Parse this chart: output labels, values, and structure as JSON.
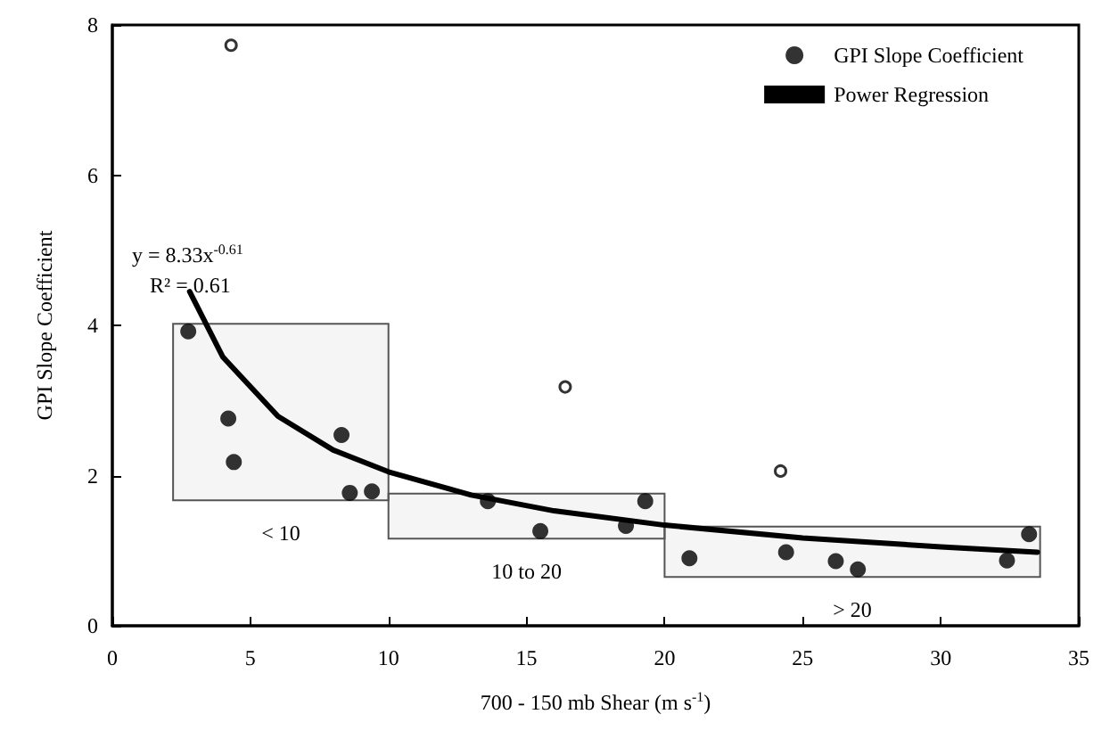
{
  "chart_data": {
    "type": "scatter",
    "xlabel": "700 - 150 mb Shear (m s$^{-1}$)",
    "ylabel": "GPI Slope Coefficient",
    "xlim": [
      0,
      35
    ],
    "xticks": [
      0,
      5,
      10,
      15,
      20,
      25,
      30,
      35
    ],
    "ylim": [
      0,
      8
    ],
    "yticks": [
      0,
      2,
      4,
      6,
      8
    ],
    "grid": false,
    "legend": "top right",
    "marker": "circle",
    "line_style": "solid",
    "series": [
      {
        "name": "GPI Slope Coefficient",
        "color": "#000000",
        "x": [
          2.75,
          4.2,
          4.4,
          8.3,
          8.6,
          9.4,
          13.6,
          15.5,
          18.6,
          19.3,
          20.9,
          24.4,
          26.2,
          27.0,
          32.4,
          33.2
        ],
        "values": [
          3.92,
          2.76,
          2.18,
          2.54,
          1.77,
          1.79,
          1.66,
          1.26,
          1.33,
          1.66,
          0.9,
          0.98,
          0.86,
          0.75,
          0.87,
          1.22
        ]
      },
      {
        "type": "scatter",
        "marker": "open circle",
        "color": "#000000",
        "x": [
          4.3,
          16.4,
          24.2
        ],
        "values": [
          7.73,
          3.18,
          2.06
        ]
      },
      {
        "name": "Power Regression",
        "type": "line",
        "marker": "none",
        "color": "#000000",
        "x": [
          2.8,
          4,
          6,
          8,
          10,
          13,
          16,
          20,
          25,
          30,
          33.5
        ],
        "values": [
          4.45,
          3.58,
          2.79,
          2.34,
          2.05,
          1.74,
          1.53,
          1.34,
          1.17,
          1.05,
          0.98
        ]
      }
    ],
    "bands": [
      {
        "axis": "x",
        "from": 2.2,
        "to": 10,
        "label": "< 10"
      },
      {
        "axis": "x",
        "from": 10,
        "to": 20,
        "label": "10 to 20"
      },
      {
        "axis": "x",
        "from": 20,
        "to": 33.6,
        "label": "> 20"
      }
    ],
    "annotations": [
      "y = 8.33x$^{-0.61}$",
      "R² = 0.61"
    ]
  }
}
